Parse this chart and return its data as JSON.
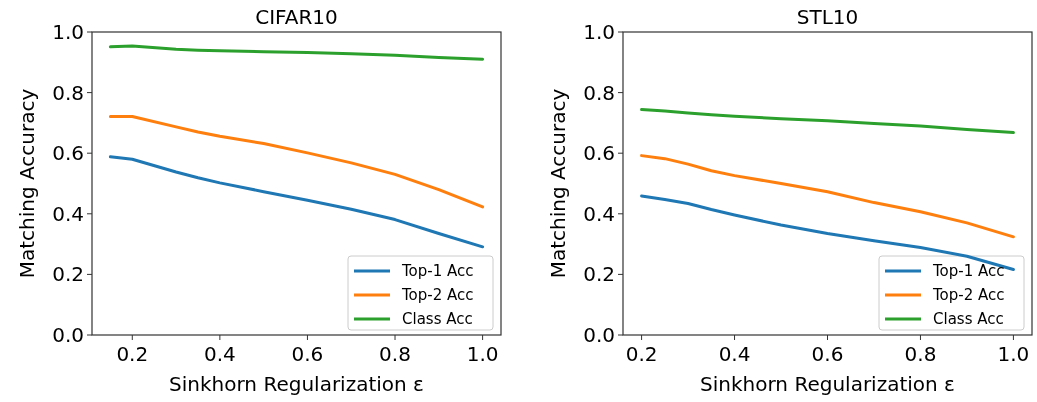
{
  "chart_data": [
    {
      "type": "line",
      "title": "CIFAR10",
      "xlabel": "Sinkhorn Regularization ε",
      "ylabel": "Matching Accuracy",
      "xlim": [
        0.108,
        1.042
      ],
      "xticks": [
        {
          "value": 0.2,
          "label": "0.2"
        },
        {
          "value": 0.4,
          "label": "0.4"
        },
        {
          "value": 0.6,
          "label": "0.6"
        },
        {
          "value": 0.8,
          "label": "0.8"
        },
        {
          "value": 1.0,
          "label": "1.0"
        }
      ],
      "ylim": [
        0,
        1.0
      ],
      "yticks": [
        {
          "value": 0,
          "label": "0.0"
        },
        {
          "value": 0.2,
          "label": "0.2"
        },
        {
          "value": 0.4,
          "label": "0.4"
        },
        {
          "value": 0.6,
          "label": "0.6"
        },
        {
          "value": 0.8,
          "label": "0.8"
        },
        {
          "value": 1.0,
          "label": "1.0"
        }
      ],
      "legend": "bottom right",
      "grid": false,
      "line_style": "solid",
      "marker": "none",
      "x": [
        0.15,
        0.2,
        0.3,
        0.35,
        0.4,
        0.5,
        0.6,
        0.7,
        0.8,
        0.9,
        1.0
      ],
      "series": [
        {
          "name": "Top-1 Acc",
          "color": "#1f77b4",
          "values": [
            0.588,
            0.58,
            0.538,
            0.519,
            0.502,
            0.473,
            0.445,
            0.415,
            0.381,
            0.335,
            0.291
          ]
        },
        {
          "name": "Top-2 Acc",
          "color": "#ff7f0e",
          "values": [
            0.721,
            0.721,
            0.687,
            0.67,
            0.656,
            0.632,
            0.601,
            0.568,
            0.53,
            0.48,
            0.423
          ]
        },
        {
          "name": "Class Acc",
          "color": "#2ca02c",
          "values": [
            0.951,
            0.954,
            0.943,
            0.94,
            0.938,
            0.935,
            0.932,
            0.928,
            0.923,
            0.916,
            0.91
          ]
        }
      ]
    },
    {
      "type": "line",
      "title": "STL10",
      "xlabel": "Sinkhorn Regularization ε",
      "ylabel": "Matching Accuracy",
      "xlim": [
        0.16,
        1.04
      ],
      "xticks": [
        {
          "value": 0.2,
          "label": "0.2"
        },
        {
          "value": 0.4,
          "label": "0.4"
        },
        {
          "value": 0.6,
          "label": "0.6"
        },
        {
          "value": 0.8,
          "label": "0.8"
        },
        {
          "value": 1.0,
          "label": "1.0"
        }
      ],
      "ylim": [
        0,
        1.0
      ],
      "yticks": [
        {
          "value": 0,
          "label": "0.0"
        },
        {
          "value": 0.2,
          "label": "0.2"
        },
        {
          "value": 0.4,
          "label": "0.4"
        },
        {
          "value": 0.6,
          "label": "0.6"
        },
        {
          "value": 0.8,
          "label": "0.8"
        },
        {
          "value": 1.0,
          "label": "1.0"
        }
      ],
      "legend": "bottom right",
      "grid": false,
      "line_style": "solid",
      "marker": "none",
      "x": [
        0.2,
        0.25,
        0.3,
        0.35,
        0.4,
        0.5,
        0.6,
        0.7,
        0.8,
        0.9,
        1.0
      ],
      "series": [
        {
          "name": "Top-1 Acc",
          "color": "#1f77b4",
          "values": [
            0.459,
            0.447,
            0.434,
            0.414,
            0.396,
            0.363,
            0.335,
            0.311,
            0.289,
            0.26,
            0.216
          ]
        },
        {
          "name": "Top-2 Acc",
          "color": "#ff7f0e",
          "values": [
            0.592,
            0.582,
            0.564,
            0.542,
            0.526,
            0.5,
            0.473,
            0.437,
            0.407,
            0.37,
            0.324
          ]
        },
        {
          "name": "Class Acc",
          "color": "#2ca02c",
          "values": [
            0.744,
            0.739,
            0.733,
            0.727,
            0.722,
            0.714,
            0.707,
            0.698,
            0.69,
            0.678,
            0.668
          ]
        }
      ]
    }
  ]
}
